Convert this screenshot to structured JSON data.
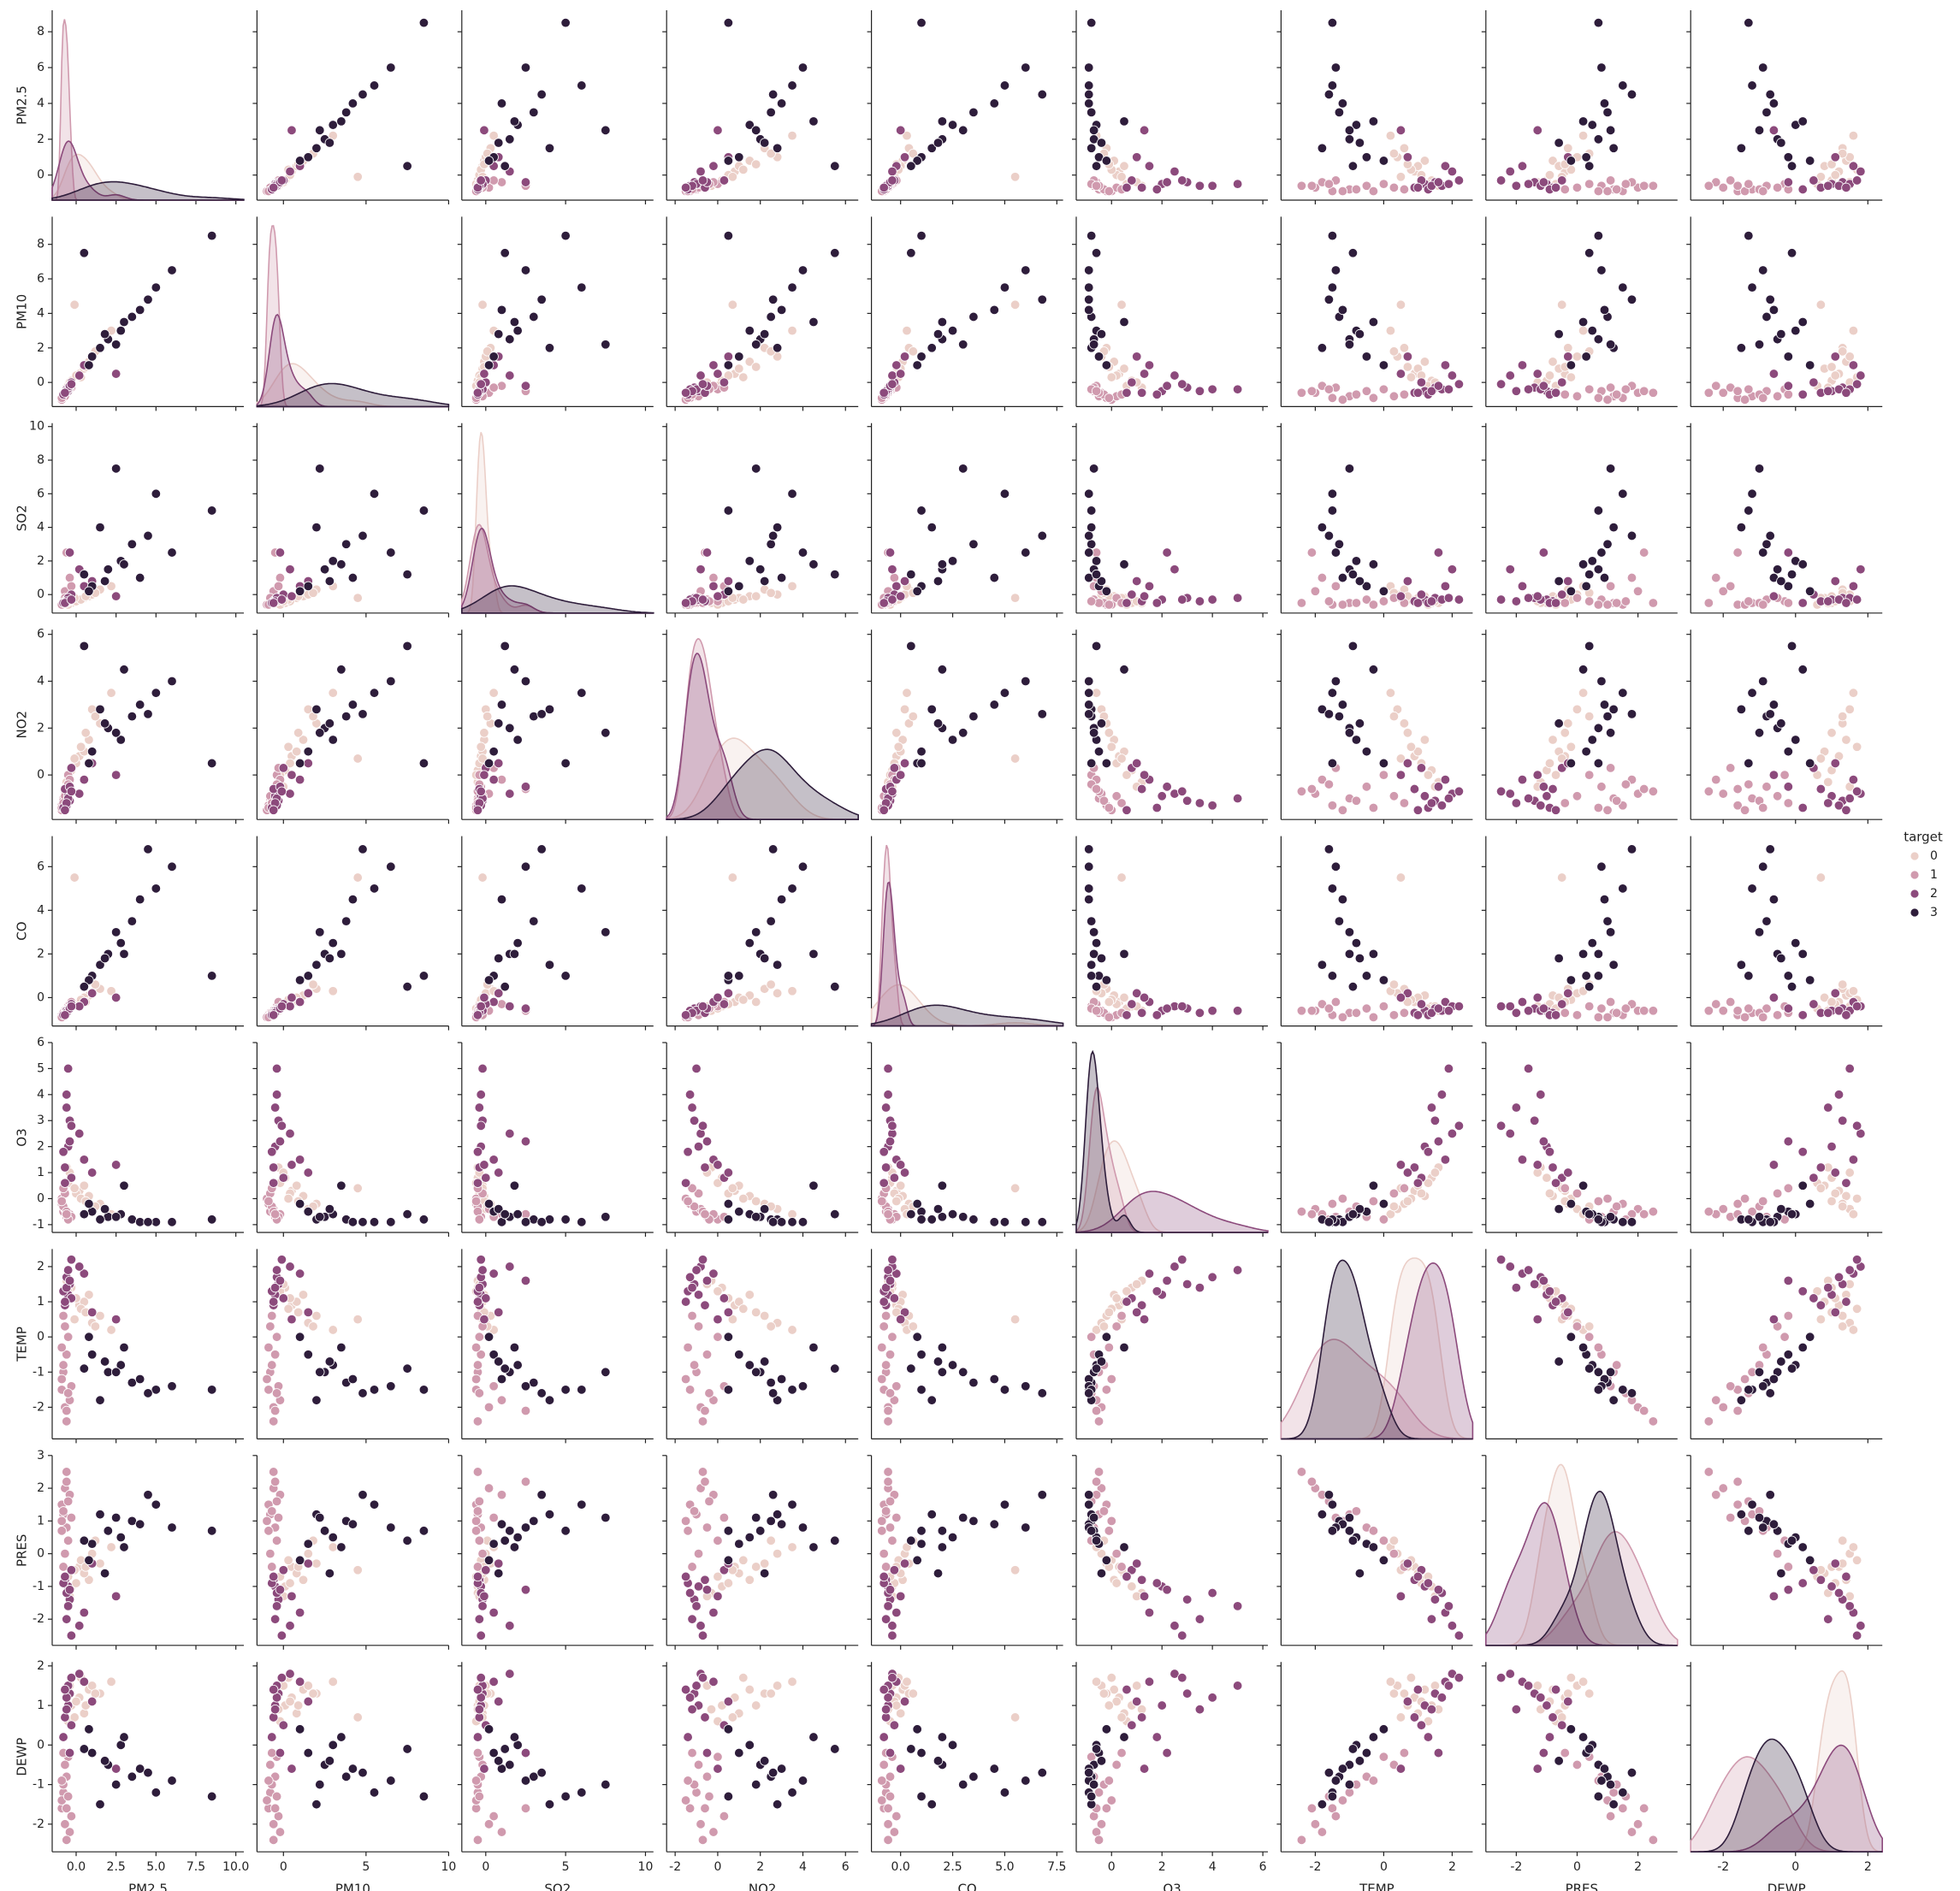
{
  "chart_data": {
    "type": "pairplot",
    "legend_title": "target",
    "variables": [
      {
        "name": "PM2.5",
        "xlim": [
          -1.5,
          10.5
        ],
        "ylim": [
          -1.4,
          9.2
        ],
        "xticks": [
          {
            "value": 0,
            "label": "0.0"
          },
          {
            "value": 2.5,
            "label": "2.5"
          },
          {
            "value": 5,
            "label": "5.0"
          },
          {
            "value": 7.5,
            "label": "7.5"
          },
          {
            "value": 10,
            "label": "10.0"
          }
        ],
        "yticks": [
          0,
          2,
          4,
          6,
          8
        ]
      },
      {
        "name": "PM10",
        "xlim": [
          -1.6,
          10
        ],
        "ylim": [
          -1.4,
          9.6
        ],
        "xticks": [
          0,
          5,
          10
        ],
        "yticks": [
          0,
          2,
          4,
          6,
          8
        ]
      },
      {
        "name": "SO2",
        "xlim": [
          -1.5,
          10.5
        ],
        "ylim": [
          -1.1,
          10.2
        ],
        "xticks": [
          0,
          5,
          10
        ],
        "yticks": [
          0,
          2,
          4,
          6,
          8,
          10
        ]
      },
      {
        "name": "NO2",
        "xlim": [
          -2.4,
          6.6
        ],
        "ylim": [
          -1.9,
          6.2
        ],
        "xticks": [
          -2,
          0,
          2,
          4,
          6
        ],
        "yticks": [
          0,
          2,
          4,
          6
        ]
      },
      {
        "name": "CO",
        "xlim": [
          -1.4,
          7.8
        ],
        "ylim": [
          -1.3,
          7.4
        ],
        "xticks": [
          {
            "value": 0,
            "label": "0.0"
          },
          {
            "value": 2.5,
            "label": "2.5"
          },
          {
            "value": 5,
            "label": "5.0"
          },
          {
            "value": 7.5,
            "label": "7.5"
          }
        ],
        "yticks": [
          0,
          2,
          4,
          6
        ]
      },
      {
        "name": "O3",
        "xlim": [
          -1.4,
          6.2
        ],
        "ylim": [
          -1.3,
          6.0
        ],
        "xticks": [
          0,
          2,
          4,
          6
        ],
        "yticks": [
          -1,
          0,
          1,
          2,
          3,
          4,
          5,
          6
        ]
      },
      {
        "name": "TEMP",
        "xlim": [
          -3.0,
          2.6
        ],
        "ylim": [
          -2.9,
          2.5
        ],
        "xticks": [
          -2,
          0,
          2
        ],
        "yticks": [
          -2,
          -1,
          0,
          1,
          2
        ]
      },
      {
        "name": "PRES",
        "xlim": [
          -3.0,
          3.3
        ],
        "ylim": [
          -2.8,
          3.0
        ],
        "xticks": [
          -2,
          0,
          2
        ],
        "yticks": [
          -2,
          -1,
          0,
          1,
          2,
          3
        ]
      },
      {
        "name": "DEWP",
        "xlim": [
          -2.9,
          2.4
        ],
        "ylim": [
          -2.7,
          2.1
        ],
        "xticks": [
          -2,
          0,
          2
        ],
        "yticks": [
          -2,
          -1,
          0,
          1,
          2
        ]
      }
    ],
    "groups": [
      {
        "name": "0",
        "color": "#ebcfc8",
        "rows": [
          [
            0.2,
            0.5,
            -0.3,
            0.8,
            -0.2,
            0.3,
            0.9,
            -0.4,
            1.2
          ],
          [
            0.8,
            1.2,
            -0.1,
            1.5,
            0.1,
            0.1,
            1.2,
            -0.8,
            1.4
          ],
          [
            -0.3,
            0.1,
            -0.5,
            0.2,
            -0.4,
            0.8,
            1.4,
            -1.0,
            1.0
          ],
          [
            1.5,
            2.0,
            0.3,
            2.2,
            0.4,
            -0.2,
            0.6,
            -0.3,
            1.3
          ],
          [
            0.5,
            0.8,
            -0.2,
            1.0,
            0.0,
            0.5,
            1.0,
            -0.6,
            0.8
          ],
          [
            -0.6,
            -0.3,
            -0.5,
            -0.3,
            -0.6,
            1.2,
            1.6,
            -1.2,
            0.9
          ],
          [
            1.0,
            1.5,
            0.0,
            2.8,
            0.2,
            -0.4,
            0.4,
            0.0,
            1.5
          ],
          [
            0.0,
            0.4,
            -0.4,
            0.5,
            -0.3,
            0.2,
            1.1,
            -0.9,
            1.1
          ],
          [
            2.2,
            3.0,
            0.5,
            3.5,
            0.3,
            -0.6,
            0.2,
            0.2,
            1.6
          ],
          [
            -0.5,
            -0.2,
            -0.6,
            0.0,
            -0.5,
            0.6,
            1.3,
            -0.7,
            0.6
          ],
          [
            0.3,
            0.3,
            -0.3,
            1.2,
            -0.1,
            0.0,
            0.8,
            -0.2,
            1.7
          ],
          [
            -0.1,
            4.5,
            -0.2,
            0.7,
            5.5,
            0.4,
            0.5,
            -0.5,
            0.7
          ],
          [
            0.6,
            0.9,
            -0.1,
            1.8,
            -0.2,
            -0.1,
            0.7,
            -0.4,
            1.0
          ],
          [
            1.2,
            1.8,
            0.1,
            2.5,
            0.6,
            -0.3,
            0.3,
            0.4,
            1.3
          ],
          [
            -0.4,
            0.0,
            -0.4,
            -0.5,
            -0.4,
            1.0,
            1.5,
            -1.3,
            1.5
          ]
        ]
      },
      {
        "name": "1",
        "color": "#d09aae",
        "rows": [
          [
            -0.8,
            -0.8,
            -0.5,
            -1.0,
            -0.7,
            -0.5,
            -1.0,
            1.2,
            -1.2
          ],
          [
            -0.9,
            -0.9,
            -0.6,
            -1.3,
            -0.8,
            -0.2,
            -1.5,
            1.5,
            -1.6
          ],
          [
            -0.6,
            -0.5,
            -0.3,
            -0.5,
            -0.5,
            -0.7,
            -0.5,
            0.8,
            -0.8
          ],
          [
            -0.7,
            -0.6,
            0.2,
            -0.8,
            -0.6,
            -0.4,
            -2.0,
            2.0,
            -2.0
          ],
          [
            -0.5,
            -0.4,
            -0.4,
            0.0,
            -0.4,
            -0.8,
            0.0,
            0.4,
            -0.3
          ],
          [
            -0.9,
            -1.0,
            -0.6,
            -1.5,
            -0.9,
            0.0,
            -1.2,
            1.0,
            -1.4
          ],
          [
            -0.4,
            -0.2,
            1.0,
            -0.2,
            -0.3,
            -0.6,
            -1.8,
            1.8,
            -2.2
          ],
          [
            -0.8,
            -0.7,
            -0.5,
            -1.1,
            -0.7,
            -0.3,
            -0.8,
            1.3,
            -1.0
          ],
          [
            -0.6,
            -0.6,
            -0.5,
            -0.7,
            -0.6,
            -0.5,
            -2.4,
            2.5,
            -2.4
          ],
          [
            -0.7,
            -0.8,
            -0.2,
            -0.9,
            -0.8,
            0.2,
            0.3,
            0.0,
            -0.5
          ],
          [
            -0.3,
            -0.3,
            0.5,
            0.3,
            -0.2,
            -0.7,
            -1.4,
            1.1,
            -1.8
          ],
          [
            -0.9,
            -0.9,
            -0.6,
            -1.4,
            -0.9,
            -0.1,
            -0.3,
            0.7,
            -0.9
          ],
          [
            -0.5,
            -0.4,
            -0.4,
            -0.4,
            -0.5,
            -0.8,
            -1.6,
            1.6,
            -1.3
          ],
          [
            -0.8,
            -0.7,
            -0.5,
            -1.2,
            -0.7,
            0.4,
            0.6,
            -0.4,
            -0.2
          ],
          [
            -0.6,
            -0.5,
            2.5,
            -0.6,
            -0.6,
            -0.6,
            -2.1,
            2.2,
            -1.6
          ]
        ]
      },
      {
        "name": "2",
        "color": "#8c4a7c",
        "rows": [
          [
            -0.5,
            -0.5,
            -0.3,
            -0.9,
            -0.6,
            2.0,
            1.2,
            -1.0,
            1.0
          ],
          [
            -0.4,
            -0.3,
            -0.2,
            -1.1,
            -0.5,
            3.0,
            1.5,
            -1.4,
            1.3
          ],
          [
            -0.7,
            -0.6,
            -0.4,
            -0.6,
            -0.7,
            1.2,
            0.9,
            -0.8,
            0.7
          ],
          [
            0.5,
            1.0,
            0.5,
            -0.2,
            -0.2,
            1.5,
            1.8,
            -1.8,
            1.6
          ],
          [
            -0.6,
            -0.4,
            -0.3,
            -1.3,
            -0.6,
            4.0,
            1.7,
            -1.2,
            1.2
          ],
          [
            -0.3,
            0.0,
            0.0,
            0.3,
            -0.3,
            0.8,
            1.1,
            -0.5,
            0.5
          ],
          [
            0.2,
            0.4,
            1.5,
            -0.8,
            -0.4,
            2.5,
            2.0,
            -2.2,
            1.8
          ],
          [
            -0.8,
            -0.7,
            -0.5,
            -1.4,
            -0.8,
            1.8,
            1.3,
            -0.9,
            0.2
          ],
          [
            -0.5,
            -0.4,
            -0.2,
            -1.0,
            -0.6,
            5.0,
            1.9,
            -1.6,
            1.5
          ],
          [
            1.0,
            1.5,
            0.8,
            0.5,
            0.2,
            1.0,
            0.7,
            -0.3,
            1.1
          ],
          [
            -0.6,
            -0.5,
            -0.4,
            -1.2,
            -0.7,
            3.5,
            1.4,
            -2.0,
            0.9
          ],
          [
            -0.4,
            -0.2,
            2.5,
            -0.5,
            -0.5,
            2.2,
            1.6,
            -1.1,
            -0.2
          ],
          [
            2.5,
            0.5,
            -0.1,
            0.0,
            0.0,
            1.3,
            0.5,
            -1.3,
            -0.6
          ],
          [
            -0.7,
            -0.6,
            -0.5,
            -1.5,
            -0.8,
            0.6,
            1.0,
            -0.7,
            1.4
          ],
          [
            -0.3,
            -0.1,
            -0.3,
            -0.7,
            -0.4,
            2.8,
            2.2,
            -2.5,
            1.7
          ]
        ]
      },
      {
        "name": "3",
        "color": "#2e1d3b",
        "rows": [
          [
            2.0,
            2.5,
            1.5,
            2.0,
            2.0,
            -0.7,
            -1.0,
            0.7,
            -0.5
          ],
          [
            3.5,
            3.8,
            3.0,
            2.5,
            3.5,
            -0.8,
            -1.3,
            1.0,
            -0.8
          ],
          [
            1.0,
            1.5,
            0.5,
            1.0,
            1.0,
            -0.5,
            -0.5,
            0.3,
            -0.2
          ],
          [
            5.0,
            5.5,
            6.0,
            3.5,
            5.0,
            -0.9,
            -1.5,
            1.5,
            -1.2
          ],
          [
            2.8,
            3.0,
            2.0,
            1.5,
            2.5,
            -0.6,
            -0.8,
            0.5,
            0.0
          ],
          [
            1.5,
            2.0,
            4.0,
            2.8,
            1.5,
            -0.8,
            -1.8,
            1.2,
            -1.5
          ],
          [
            4.0,
            4.2,
            1.0,
            3.0,
            4.5,
            -0.9,
            -1.2,
            0.9,
            -0.6
          ],
          [
            0.8,
            1.0,
            0.2,
            0.5,
            0.8,
            -0.2,
            0.0,
            -0.2,
            0.4
          ],
          [
            6.0,
            6.5,
            2.5,
            4.0,
            6.0,
            -0.9,
            -1.4,
            0.8,
            -0.9
          ],
          [
            2.5,
            2.2,
            7.5,
            1.8,
            3.0,
            -0.7,
            -1.0,
            1.1,
            -1.0
          ],
          [
            3.0,
            3.5,
            1.8,
            4.5,
            2.0,
            0.5,
            -0.3,
            0.2,
            0.2
          ],
          [
            8.5,
            8.5,
            5.0,
            0.5,
            1.0,
            -0.8,
            -1.5,
            0.7,
            -1.3
          ],
          [
            1.8,
            2.8,
            0.8,
            2.2,
            1.8,
            -0.4,
            -0.7,
            -0.6,
            -0.4
          ],
          [
            4.5,
            4.8,
            3.5,
            2.6,
            6.8,
            -0.9,
            -1.6,
            1.8,
            -0.7
          ],
          [
            0.5,
            7.5,
            1.2,
            5.5,
            0.5,
            -0.6,
            -0.9,
            0.4,
            -0.1
          ]
        ]
      }
    ]
  }
}
